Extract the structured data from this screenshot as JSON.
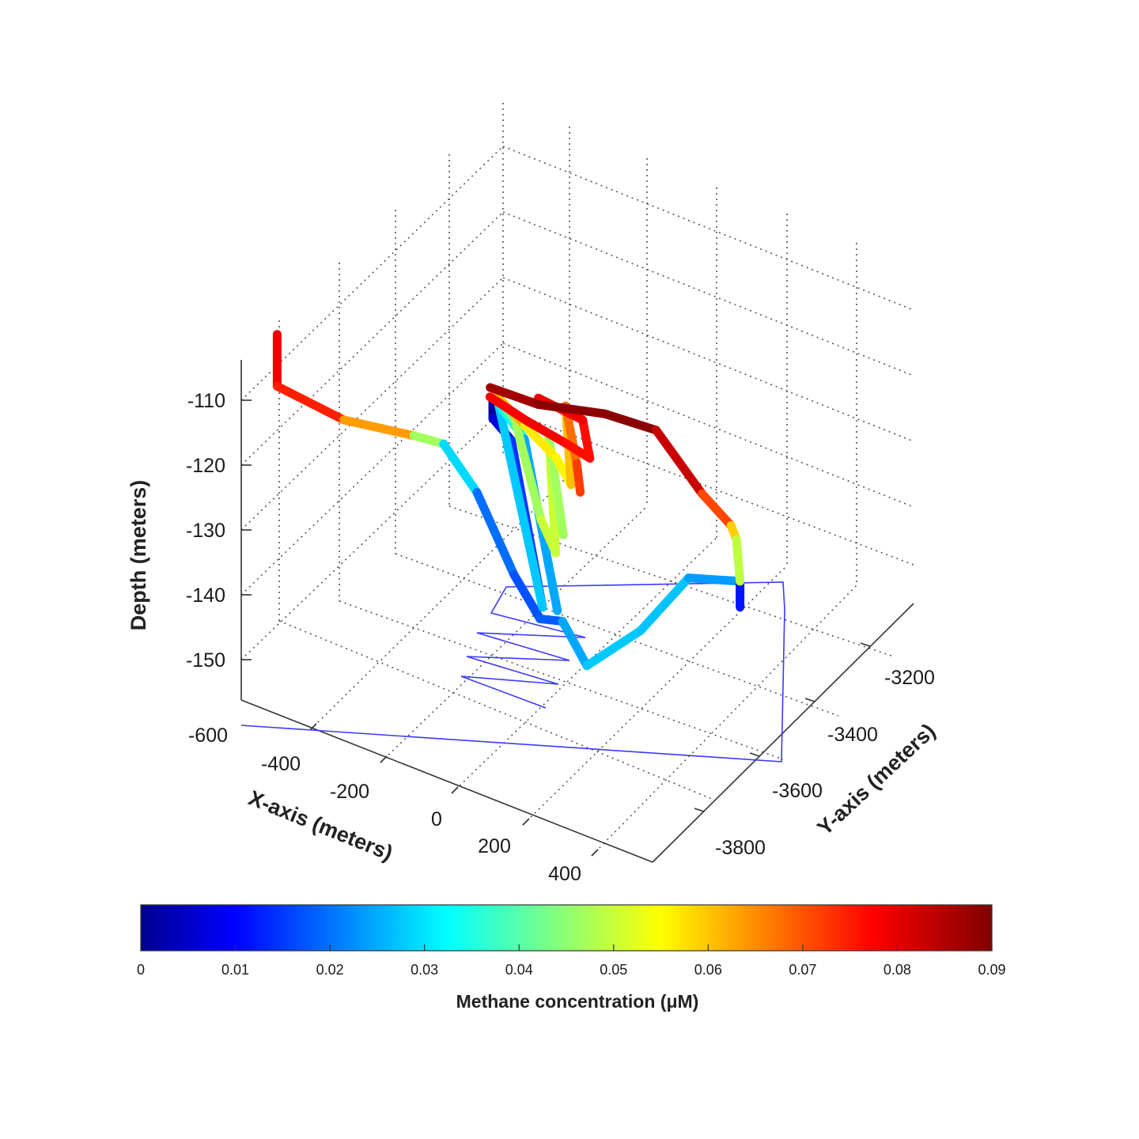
{
  "chart_data": {
    "type": "line",
    "subtype": "3d-trajectory",
    "title": "",
    "zlabel": "Depth (meters)",
    "xlabel": "X-axis (meters)",
    "ylabel": "Y-axis (meters)",
    "zlim": [
      -155,
      -100
    ],
    "xlim": [
      -600,
      500
    ],
    "ylim": [
      -3900,
      -3100
    ],
    "z_ticks": [
      "-110",
      "-120",
      "-130",
      "-140",
      "-150"
    ],
    "x_ticks": [
      "-600",
      "-400",
      "-200",
      "0",
      "200",
      "400"
    ],
    "y_ticks": [
      "-3200",
      "-3400",
      "-3600",
      "-3800"
    ],
    "grid": true,
    "colormap": "jet",
    "colorbar": {
      "label": "Methane concentration (μM)",
      "range": [
        0,
        0.09
      ],
      "ticks": [
        "0",
        "0.01",
        "0.02",
        "0.03",
        "0.04",
        "0.05",
        "0.06",
        "0.07",
        "0.08",
        "0.09"
      ],
      "placement": "bottom"
    },
    "series": [
      {
        "points": [
          {
            "x": -600,
            "y": -3700,
            "z": -104,
            "c": 0.08
          },
          {
            "x": -600,
            "y": -3700,
            "z": -112,
            "c": 0.08
          },
          {
            "x": -470,
            "y": -3600,
            "z": -117,
            "c": 0.072
          },
          {
            "x": -330,
            "y": -3500,
            "z": -119,
            "c": 0.058
          },
          {
            "x": -270,
            "y": -3460,
            "z": -120,
            "c": 0.038
          },
          {
            "x": -200,
            "y": -3420,
            "z": -127,
            "c": 0.023
          },
          {
            "x": -120,
            "y": -3380,
            "z": -139,
            "c": 0.019
          },
          {
            "x": -60,
            "y": -3360,
            "z": -145,
            "c": 0.018
          },
          {
            "x": 0,
            "y": -3360,
            "z": -144,
            "c": 0.021
          },
          {
            "x": 70,
            "y": -3370,
            "z": -149,
            "c": 0.031
          },
          {
            "x": 180,
            "y": -3300,
            "z": -143,
            "c": 0.027
          },
          {
            "x": 270,
            "y": -3220,
            "z": -135,
            "c": 0.03
          },
          {
            "x": 350,
            "y": -3100,
            "z": -137,
            "c": 0.02
          },
          {
            "x": 350,
            "y": -3100,
            "z": -141,
            "c": 0.006
          }
        ]
      },
      {
        "points": [
          {
            "x": -100,
            "y": -3540,
            "z": -107,
            "c": 0.002
          },
          {
            "x": -100,
            "y": -3540,
            "z": -110,
            "c": 0.004
          },
          {
            "x": -60,
            "y": -3520,
            "z": -113,
            "c": 0.012
          },
          {
            "x": -15,
            "y": -3440,
            "z": -140,
            "c": 0.02
          },
          {
            "x": -80,
            "y": -3550,
            "z": -107,
            "c": 0.038
          },
          {
            "x": -25,
            "y": -3520,
            "z": -112,
            "c": 0.032
          },
          {
            "x": 20,
            "y": -3430,
            "z": -140,
            "c": 0.02
          }
        ]
      },
      {
        "points": [
          {
            "x": -75,
            "y": -3560,
            "z": -106,
            "c": 0.04
          },
          {
            "x": -40,
            "y": -3540,
            "z": -109,
            "c": 0.046
          },
          {
            "x": 0,
            "y": -3480,
            "z": -125,
            "c": 0.05
          },
          {
            "x": 30,
            "y": -3460,
            "z": -130,
            "c": 0.053
          },
          {
            "x": 40,
            "y": -3520,
            "z": -110,
            "c": 0.05
          },
          {
            "x": 60,
            "y": -3480,
            "z": -126,
            "c": 0.046
          }
        ]
      },
      {
        "points": [
          {
            "x": -60,
            "y": -3600,
            "z": -104,
            "c": 0.065
          },
          {
            "x": 0,
            "y": -3570,
            "z": -108,
            "c": 0.06
          },
          {
            "x": 60,
            "y": -3520,
            "z": -113,
            "c": 0.056
          },
          {
            "x": 90,
            "y": -3500,
            "z": -117,
            "c": 0.058
          },
          {
            "x": 90,
            "y": -3530,
            "z": -104,
            "c": 0.066
          },
          {
            "x": 110,
            "y": -3510,
            "z": -113,
            "c": 0.072
          },
          {
            "x": 110,
            "y": -3490,
            "z": -118,
            "c": 0.075
          }
        ]
      },
      {
        "points": [
          {
            "x": -60,
            "y": -3640,
            "z": -103,
            "c": 0.078
          },
          {
            "x": 20,
            "y": -3600,
            "z": -106,
            "c": 0.08
          },
          {
            "x": 100,
            "y": -3550,
            "z": -109,
            "c": 0.079
          },
          {
            "x": 150,
            "y": -3520,
            "z": -111,
            "c": 0.076
          },
          {
            "x": 150,
            "y": -3560,
            "z": -104,
            "c": 0.079
          },
          {
            "x": 60,
            "y": -3620,
            "z": -101,
            "c": 0.081
          }
        ]
      },
      {
        "points": [
          {
            "x": -40,
            "y": -3680,
            "z": -100,
            "c": 0.086
          },
          {
            "x": 60,
            "y": -3620,
            "z": -102,
            "c": 0.088
          },
          {
            "x": 180,
            "y": -3500,
            "z": -104,
            "c": 0.09
          },
          {
            "x": 260,
            "y": -3380,
            "z": -108,
            "c": 0.088
          },
          {
            "x": 320,
            "y": -3250,
            "z": -120,
            "c": 0.079
          },
          {
            "x": 350,
            "y": -3150,
            "z": -127,
            "c": 0.066
          },
          {
            "x": 350,
            "y": -3120,
            "z": -130,
            "c": 0.055
          },
          {
            "x": 350,
            "y": -3100,
            "z": -137,
            "c": 0.046
          }
        ]
      }
    ]
  }
}
